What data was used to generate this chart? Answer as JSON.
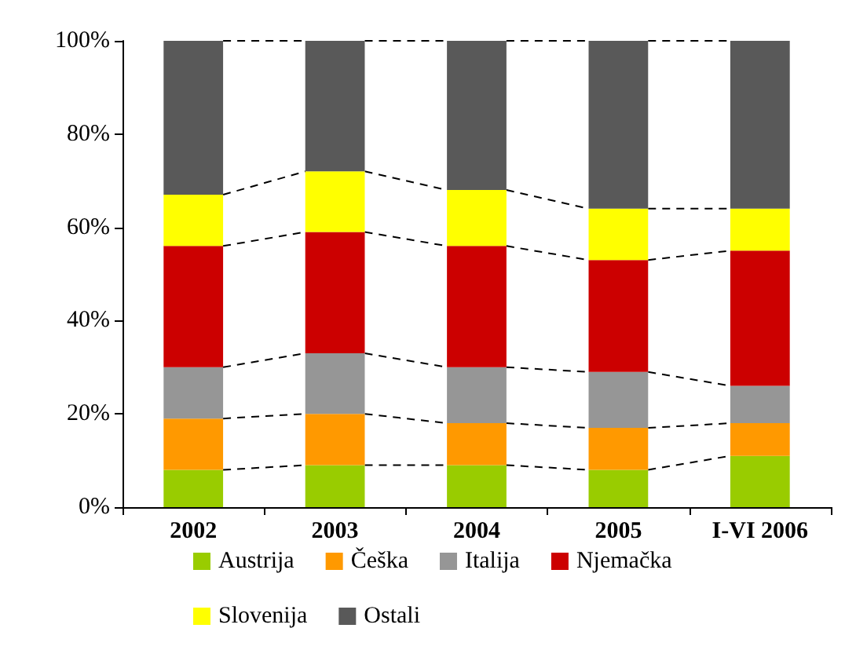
{
  "chart_data": {
    "type": "bar",
    "stacked": true,
    "categories": [
      "2002",
      "2003",
      "2004",
      "2005",
      "I-VI 2006"
    ],
    "series": [
      {
        "name": "Austrija",
        "color": "#99cc00",
        "values": [
          8,
          9,
          9,
          8,
          11
        ]
      },
      {
        "name": "Češka",
        "color": "#ff9900",
        "values": [
          11,
          11,
          9,
          9,
          7
        ]
      },
      {
        "name": "Italija",
        "color": "#969696",
        "values": [
          11,
          13,
          12,
          12,
          8
        ]
      },
      {
        "name": "Njemačka",
        "color": "#cc0000",
        "values": [
          26,
          26,
          26,
          24,
          29
        ]
      },
      {
        "name": "Slovenija",
        "color": "#ffff00",
        "values": [
          11,
          13,
          12,
          11,
          9
        ]
      },
      {
        "name": "Ostali",
        "color": "#595959",
        "values": [
          33,
          28,
          32,
          36,
          36
        ]
      }
    ],
    "ylim": [
      0,
      100
    ],
    "yticks": [
      {
        "value": 0,
        "label": "0%"
      },
      {
        "value": 20,
        "label": "20%"
      },
      {
        "value": 40,
        "label": "40%"
      },
      {
        "value": 60,
        "label": "60%"
      },
      {
        "value": 80,
        "label": "80%"
      },
      {
        "value": 100,
        "label": "100%"
      }
    ],
    "grid": false,
    "legend": "bottom"
  }
}
